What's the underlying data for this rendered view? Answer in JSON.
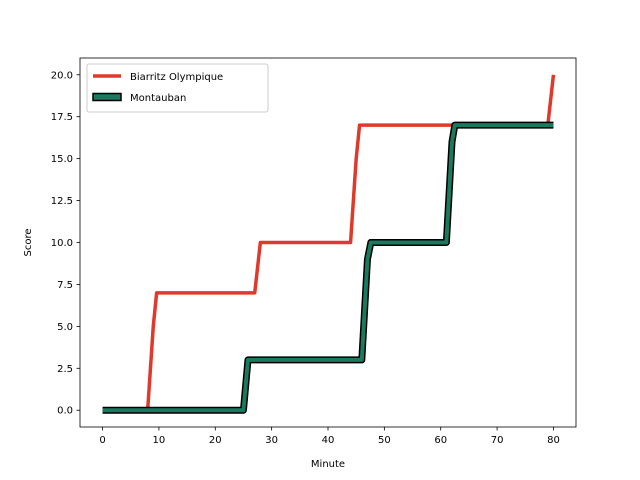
{
  "chart_data": {
    "type": "line",
    "title": "",
    "xlabel": "Minute",
    "ylabel": "Score",
    "xlim": [
      -4,
      84
    ],
    "ylim": [
      -1,
      21
    ],
    "xticks": [
      0,
      10,
      20,
      30,
      40,
      50,
      60,
      70,
      80
    ],
    "yticks": [
      0.0,
      2.5,
      5.0,
      7.5,
      10.0,
      12.5,
      15.0,
      17.5,
      20.0
    ],
    "grid": false,
    "legend_placement": "upper-left",
    "series": [
      {
        "name": "Biarritz Olympique",
        "color": "#e0392b",
        "style": "line",
        "points": [
          [
            0,
            0
          ],
          [
            8,
            0
          ],
          [
            9,
            5
          ],
          [
            9.6,
            7
          ],
          [
            27,
            7
          ],
          [
            28,
            10
          ],
          [
            44,
            10
          ],
          [
            45,
            15
          ],
          [
            45.6,
            17
          ],
          [
            79,
            17
          ],
          [
            80,
            20
          ]
        ]
      },
      {
        "name": "Montauban",
        "color": "#1a7a5e",
        "edge_color": "#000000",
        "style": "outlined-line",
        "points": [
          [
            0,
            0
          ],
          [
            25,
            0
          ],
          [
            25.8,
            3
          ],
          [
            46,
            3
          ],
          [
            47,
            9
          ],
          [
            47.6,
            10
          ],
          [
            61,
            10
          ],
          [
            62,
            16
          ],
          [
            62.5,
            17
          ],
          [
            80,
            17
          ]
        ]
      }
    ]
  }
}
